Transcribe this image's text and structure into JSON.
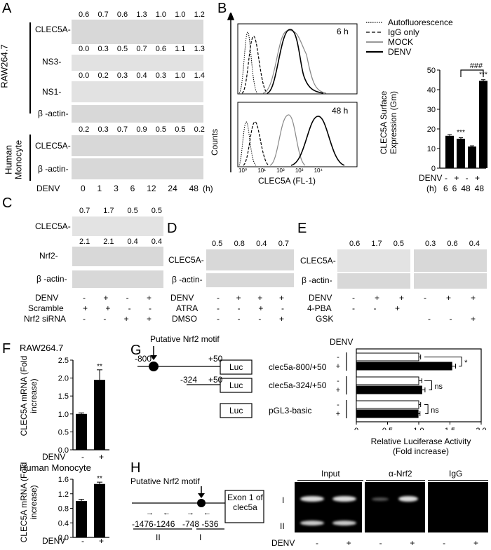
{
  "panels": {
    "A": "A",
    "B": "B",
    "C": "C",
    "D": "D",
    "E": "E",
    "F": "F",
    "G": "G",
    "H": "H"
  },
  "A": {
    "groups": [
      "RAW264.7",
      "Human Monocyte"
    ],
    "labels": [
      "CLEC5A-",
      "NS3-",
      "NS1-",
      "β -actin-",
      "CLEC5A-",
      "β -actin-"
    ],
    "quant_clec5a": [
      "0.6",
      "0.7",
      "0.6",
      "1.3",
      "1.0",
      "1.0",
      "1.2"
    ],
    "quant_ns3": [
      "0.0",
      "0.3",
      "0.5",
      "0.7",
      "0.6",
      "1.1",
      "1.3"
    ],
    "quant_ns1": [
      "0.0",
      "0.2",
      "0.3",
      "0.4",
      "0.3",
      "1.0",
      "1.4"
    ],
    "quant_human": [
      "0.2",
      "0.3",
      "0.7",
      "0.9",
      "0.5",
      "0.5",
      "0.2"
    ],
    "xlabel": "DENV",
    "times": [
      "0",
      "1",
      "3",
      "6",
      "12",
      "24",
      "48"
    ],
    "unit": "(h)"
  },
  "B": {
    "legend": [
      "Autofluorescence",
      "IgG only",
      "MOCK",
      "DENV"
    ],
    "hist_labels": [
      "6 h",
      "48 h"
    ],
    "ylabel": "Counts",
    "xlabel": "CLEC5A (FL-1)",
    "xticks": [
      "10⁰",
      "10¹",
      "10²",
      "10³",
      "10⁴"
    ],
    "bar_ylabel": "CLEC5A Surface Expression (Gm)",
    "bar_yticks": [
      "0",
      "10",
      "20",
      "30",
      "40",
      "50"
    ],
    "sig": [
      "***",
      "***"
    ],
    "hash": "###",
    "row_denv": "DENV",
    "row_h": "(h)",
    "denv_signs": [
      "-",
      "+",
      "-",
      "+"
    ],
    "hours": [
      "6",
      "6",
      "48",
      "48"
    ]
  },
  "C": {
    "quant_clec5a": [
      "0.7",
      "1.7",
      "0.5",
      "0.5"
    ],
    "quant_nrf2": [
      "2.1",
      "2.1",
      "0.4",
      "0.4"
    ],
    "labels": [
      "CLEC5A-",
      "Nrf2-",
      "β -actin-"
    ],
    "rows": [
      "DENV",
      "Scramble",
      "Nrf2 siRNA"
    ],
    "signs": [
      [
        "-",
        "+",
        "-",
        "+"
      ],
      [
        "+",
        "+",
        "-",
        "-"
      ],
      [
        "-",
        "-",
        "+",
        "+"
      ]
    ]
  },
  "D": {
    "quant": [
      "0.5",
      "0.8",
      "0.4",
      "0.7"
    ],
    "labels": [
      "CLEC5A-",
      "β -actin-"
    ],
    "rows": [
      "DENV",
      "ATRA",
      "DMSO"
    ],
    "signs": [
      [
        "-",
        "+",
        "+",
        "+"
      ],
      [
        "-",
        "-",
        "+",
        "-"
      ],
      [
        "-",
        "-",
        "-",
        "+"
      ]
    ]
  },
  "E": {
    "quant": [
      "0.6",
      "1.7",
      "0.5",
      "0.3",
      "0.6",
      "0.4"
    ],
    "labels": [
      "CLEC5A-",
      "β -actin-"
    ],
    "rows": [
      "DENV",
      "4-PBA",
      "GSK"
    ],
    "signs": [
      [
        "-",
        "+",
        "+",
        "-",
        "+",
        "+"
      ],
      [
        "-",
        "-",
        "+",
        "",
        "",
        ""
      ],
      [
        "",
        "",
        "",
        "-",
        "-",
        "+"
      ]
    ]
  },
  "F": {
    "titles": [
      "RAW264.7",
      "Human Monocyte"
    ],
    "ylabel": "CLEC5A mRNA (Fold increase)",
    "yticks_top": [
      "0.0",
      "0.5",
      "1.0",
      "1.5",
      "2.0",
      "2.5"
    ],
    "yticks_bot": [
      "0.0",
      "0.4",
      "0.8",
      "1.2",
      "1.6"
    ],
    "sig": "**",
    "xlabel": "DENV",
    "signs": [
      "-",
      "+"
    ]
  },
  "G": {
    "motif": "Putative Nrf2 motif",
    "pos": [
      "-800",
      "+50",
      "-324",
      "+50"
    ],
    "luc": "Luc",
    "constructs": [
      "clec5a-800/+50",
      "clec5a-324/+50",
      "pGL3-basic"
    ],
    "denv": "DENV",
    "signs": [
      "-",
      "+"
    ],
    "sig": [
      "*",
      "ns",
      "ns"
    ],
    "xticks": [
      "0",
      "0.5",
      "1.0",
      "1.5",
      "2.0"
    ],
    "xlabel": "Relative Luciferase Activity (Fold increase)"
  },
  "H": {
    "motif": "Putative Nrf2 motif",
    "exon": "Exon 1 of clec5a",
    "regions": [
      "-1476-1246",
      "-748  -536"
    ],
    "region_ids": [
      "II",
      "I"
    ],
    "gel_headers": [
      "Input",
      "α-Nrf2",
      "IgG"
    ],
    "gel_rows": [
      "I",
      "II"
    ],
    "denv": "DENV",
    "signs": [
      "-",
      "+",
      "-",
      "+",
      "-",
      "+"
    ]
  },
  "chart_data": [
    {
      "type": "bar",
      "categories": [
        "6 h -",
        "6 h +",
        "48 h -",
        "48 h +"
      ],
      "values": [
        16.5,
        15,
        11,
        44.5
      ],
      "ylabel": "CLEC5A Surface Expression (Gm)",
      "ylim": [
        0,
        50
      ]
    },
    {
      "type": "bar",
      "categories": [
        "-",
        "+"
      ],
      "values": [
        1.0,
        1.95
      ],
      "title": "RAW264.7",
      "ylabel": "CLEC5A mRNA (Fold increase)",
      "ylim": [
        0,
        2.5
      ]
    },
    {
      "type": "bar",
      "categories": [
        "-",
        "+"
      ],
      "values": [
        1.0,
        1.47
      ],
      "title": "Human Monocyte",
      "ylabel": "CLEC5A mRNA (Fold increase)",
      "ylim": [
        0,
        1.6
      ]
    },
    {
      "type": "bar",
      "categories": [
        "clec5a-800/+50",
        "clec5a-324/+50",
        "pGL3-basic"
      ],
      "series": [
        {
          "name": "-",
          "values": [
            1.0,
            1.0,
            1.0
          ]
        },
        {
          "name": "+",
          "values": [
            1.53,
            1.05,
            0.99
          ]
        }
      ],
      "xlabel": "Relative Luciferase Activity (Fold increase)",
      "xlim": [
        0,
        2.0
      ]
    }
  ]
}
